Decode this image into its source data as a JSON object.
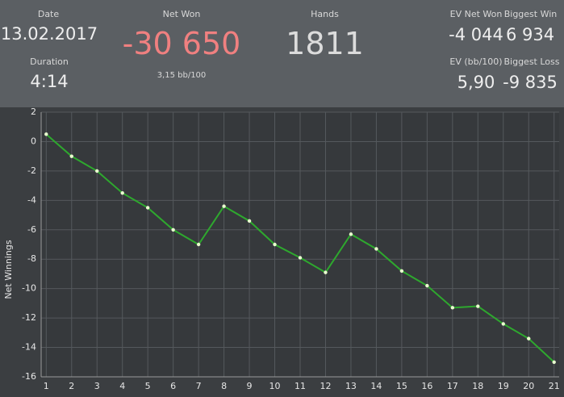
{
  "stats": {
    "date_label": "Date",
    "date": "13.02.2017",
    "duration_label": "Duration",
    "duration": "4:14",
    "net_won_label": "Net Won",
    "net_won": "-30 650",
    "bb100": "3,15 bb/100",
    "hands_label": "Hands",
    "hands": "1811",
    "ev_net_won_label": "EV Net Won",
    "ev_net_won": "-4 044",
    "biggest_win_label": "Biggest Win",
    "biggest_win": "6 934",
    "ev_bb100_label": "EV (bb/100)",
    "ev_bb100": "5,90",
    "biggest_loss_label": "Biggest Loss",
    "biggest_loss": "-9 835"
  },
  "chart_data": {
    "type": "line",
    "y_label": "Net Winnings",
    "x": [
      1,
      2,
      3,
      4,
      5,
      6,
      7,
      8,
      9,
      10,
      11,
      12,
      13,
      14,
      15,
      16,
      17,
      18,
      19,
      20,
      21
    ],
    "values": [
      0.5,
      -1.0,
      -2.0,
      -3.5,
      -4.5,
      -6.0,
      -7.0,
      -4.4,
      -5.4,
      -7.0,
      -7.9,
      -8.9,
      -6.3,
      -7.3,
      -8.8,
      -9.8,
      -11.3,
      -11.2,
      -12.4,
      -13.4,
      -15.0
    ],
    "color": "#2ea82e",
    "xlim": [
      0.8,
      21.2
    ],
    "xticks": [
      1,
      2,
      3,
      4,
      5,
      6,
      7,
      8,
      9,
      10,
      11,
      12,
      13,
      14,
      15,
      16,
      17,
      18,
      19,
      20,
      21
    ],
    "ylim": [
      -16,
      2
    ],
    "yticks": [
      -16,
      -14,
      -12,
      -10,
      -8,
      -6,
      -4,
      -2,
      0,
      2
    ],
    "grid": true
  }
}
